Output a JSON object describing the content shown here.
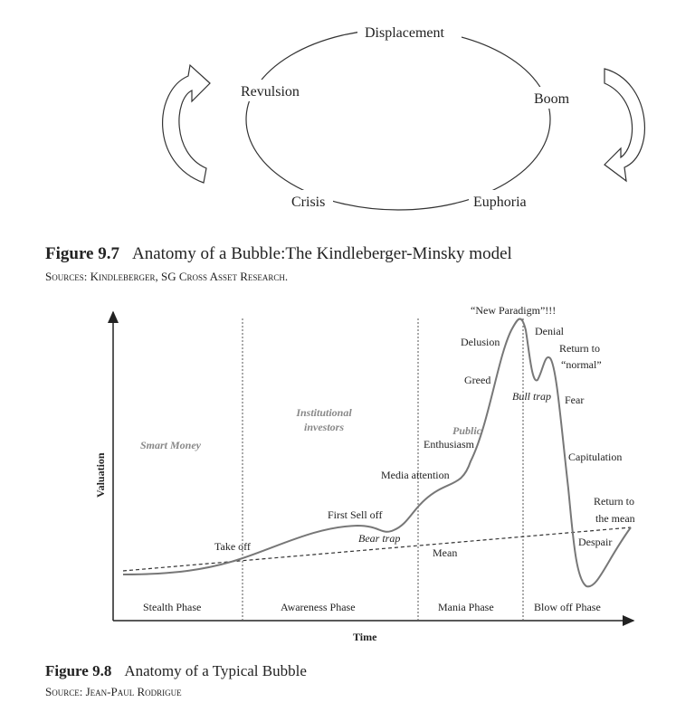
{
  "figure_9_7": {
    "stages": [
      "Displacement",
      "Boom",
      "Euphoria",
      "Crisis",
      "Revulsion"
    ],
    "number": "Figure 9.7",
    "title": "Anatomy of a Bubble:The Kindleberger-Minsky model",
    "source": "Sources: Kindleberger, SG Cross Asset Research."
  },
  "figure_9_8": {
    "number": "Figure 9.8",
    "title": "Anatomy of a Typical Bubble",
    "source": "Source: Jean-Paul Rodrigue",
    "ylabel": "Valuation",
    "xlabel": "Time",
    "phases": [
      "Stealth Phase",
      "Awareness Phase",
      "Mania Phase",
      "Blow off Phase"
    ],
    "investors": [
      "Smart Money",
      "Institutional investors",
      "Public"
    ],
    "annotations": {
      "take_off": "Take off",
      "first_sell_off": "First Sell off",
      "bear_trap": "Bear trap",
      "media": "Media attention",
      "enthusiasm": "Enthusiasm",
      "greed": "Greed",
      "delusion": "Delusion",
      "new_paradigm": "“New Paradigm”!!!",
      "denial": "Denial",
      "bull_trap": "Bull trap",
      "return_normal_1": "Return to",
      "return_normal_2": "“normal”",
      "fear": "Fear",
      "capitulation": "Capitulation",
      "return_mean_1": "Return to",
      "return_mean_2": "the mean",
      "despair": "Despair",
      "mean": "Mean"
    },
    "colors": {
      "curve": "#777777",
      "investor_labels": "#888888"
    }
  }
}
